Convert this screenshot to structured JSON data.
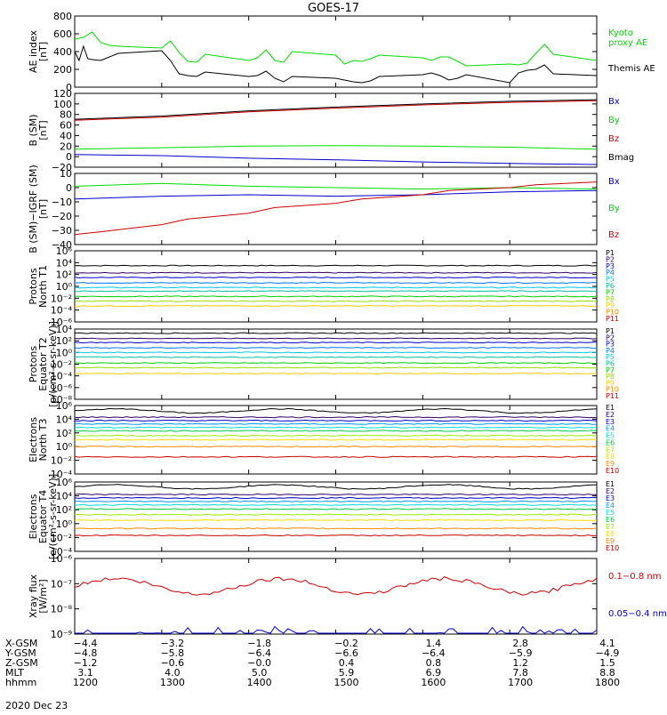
{
  "title": "GOES-17",
  "date_label": "2020 Dec 23",
  "colors": {
    "black": "#000000",
    "red": "#cc0000",
    "green": "#00dd00",
    "blue": "#0000cc",
    "P": [
      "#000000",
      "#330066",
      "#0000cc",
      "#0077ff",
      "#00c8e8",
      "#00c0a0",
      "#00d000",
      "#99dd00",
      "#ffcc00",
      "#ff8800",
      "#cc0000"
    ],
    "E": [
      "#000000",
      "#330066",
      "#0000cc",
      "#0099ff",
      "#00dddd",
      "#00cc44",
      "#99ee00",
      "#ffdd00",
      "#ff8800",
      "#cc0000"
    ]
  },
  "chart_data": [
    {
      "type": "line",
      "id": "ae",
      "ylabel": [
        "AE index",
        "[nT]"
      ],
      "ylim": [
        0,
        800
      ],
      "yticks": [
        "0",
        "200",
        "400",
        "600",
        "800"
      ],
      "legend": [
        {
          "text": "Kyoto",
          "color": "green"
        },
        {
          "text": "proxy AE",
          "color": "green"
        },
        {
          "text": "Themis AE",
          "color": "black"
        }
      ],
      "series": [
        {
          "name": "Kyoto proxy AE",
          "color": "green",
          "x": [
            1200,
            1210,
            1220,
            1230,
            1240,
            1250,
            1300,
            1310,
            1320,
            1330,
            1340,
            1350,
            1400,
            1410,
            1420,
            1430,
            1440,
            1450,
            1500,
            1510,
            1520,
            1530,
            1540,
            1550,
            1600,
            1610,
            1620,
            1630,
            1640,
            1650,
            1700,
            1710,
            1720,
            1730,
            1740,
            1750,
            1800
          ],
          "values": [
            540,
            560,
            620,
            500,
            470,
            460,
            440,
            520,
            390,
            290,
            280,
            370,
            300,
            330,
            420,
            300,
            280,
            400,
            360,
            260,
            300,
            290,
            320,
            360,
            330,
            300,
            340,
            340,
            290,
            240,
            260,
            250,
            270,
            380,
            480,
            370,
            300
          ]
        },
        {
          "name": "Themis AE",
          "color": "black",
          "x": [
            1200,
            1205,
            1210,
            1215,
            1220,
            1230,
            1240,
            1250,
            1300,
            1310,
            1320,
            1330,
            1340,
            1350,
            1400,
            1410,
            1420,
            1430,
            1440,
            1450,
            1500,
            1510,
            1520,
            1530,
            1540,
            1550,
            1600,
            1610,
            1620,
            1630,
            1640,
            1650,
            1700,
            1710,
            1720,
            1730,
            1740,
            1750,
            1800
          ],
          "values": [
            400,
            300,
            460,
            320,
            310,
            300,
            340,
            380,
            410,
            300,
            150,
            130,
            120,
            170,
            120,
            130,
            180,
            100,
            60,
            120,
            100,
            80,
            60,
            50,
            70,
            120,
            140,
            160,
            130,
            80,
            100,
            140,
            50,
            160,
            190,
            200,
            250,
            150,
            130
          ]
        }
      ]
    },
    {
      "type": "line",
      "id": "bsm",
      "ylabel": [
        "B (SM)",
        "[nT]"
      ],
      "ylim": [
        -20,
        120
      ],
      "yticks": [
        "−20",
        "0",
        "20",
        "40",
        "60",
        "80",
        "100",
        "120"
      ],
      "legend": [
        {
          "text": "Bx",
          "color": "blue"
        },
        {
          "text": "By",
          "color": "green"
        },
        {
          "text": "Bz",
          "color": "red"
        },
        {
          "text": "Bmag",
          "color": "black"
        }
      ],
      "series": [
        {
          "name": "Bx",
          "color": "blue",
          "x": [
            1200,
            1300,
            1400,
            1500,
            1600,
            1700,
            1800
          ],
          "values": [
            4,
            2,
            -3,
            -6,
            -10,
            -13,
            -15
          ]
        },
        {
          "name": "By",
          "color": "green",
          "x": [
            1200,
            1300,
            1400,
            1500,
            1600,
            1700,
            1800
          ],
          "values": [
            14,
            17,
            20,
            21,
            20,
            18,
            14
          ]
        },
        {
          "name": "Bz",
          "color": "red",
          "x": [
            1200,
            1300,
            1400,
            1500,
            1600,
            1700,
            1800
          ],
          "values": [
            69,
            75,
            85,
            92,
            98,
            103,
            106
          ]
        },
        {
          "name": "Bmag",
          "color": "black",
          "x": [
            1200,
            1300,
            1400,
            1500,
            1600,
            1700,
            1800
          ],
          "values": [
            71,
            77,
            87,
            94,
            100,
            105,
            108
          ]
        }
      ]
    },
    {
      "type": "line",
      "id": "bigrf",
      "ylabel": [
        "B (SM)−IGRF (SM)",
        "[nT]"
      ],
      "ylim": [
        -40,
        10
      ],
      "yticks": [
        "−40",
        "−30",
        "−20",
        "−10",
        "0",
        "10"
      ],
      "legend": [
        {
          "text": "Bx",
          "color": "blue"
        },
        {
          "text": "By",
          "color": "green"
        },
        {
          "text": "Bz",
          "color": "red"
        }
      ],
      "series": [
        {
          "name": "Bx",
          "color": "blue",
          "x": [
            1200,
            1300,
            1400,
            1500,
            1600,
            1700,
            1800
          ],
          "values": [
            -8,
            -6,
            -5,
            -6,
            -5,
            -3,
            -2
          ]
        },
        {
          "name": "By",
          "color": "green",
          "x": [
            1200,
            1300,
            1400,
            1500,
            1600,
            1700,
            1800
          ],
          "values": [
            1,
            3,
            1,
            0,
            -1,
            0,
            -1
          ]
        },
        {
          "name": "Bz",
          "color": "red",
          "x": [
            1200,
            1230,
            1300,
            1330,
            1400,
            1430,
            1500,
            1530,
            1600,
            1630,
            1700,
            1730,
            1800
          ],
          "values": [
            -33,
            -31,
            -26,
            -22,
            -18,
            -14,
            -11,
            -8,
            -5,
            -2,
            0,
            2,
            4
          ]
        }
      ]
    },
    {
      "type": "line",
      "id": "protons_t1",
      "log": true,
      "ylabel": [
        "Protons",
        "North T1"
      ],
      "yticks": [
        "10⁶",
        "10⁴",
        "10²",
        "10⁰",
        "10⁻²",
        "10⁻⁴",
        "10⁻⁶"
      ],
      "legend_prefix": "P",
      "legend": [
        "P1",
        "P2",
        "P3",
        "P4",
        "P5",
        "P6",
        "P7",
        "P8",
        "P9",
        "P10",
        "P11"
      ],
      "series_levels": [
        3.5,
        2.3,
        1.5,
        0.6,
        -0.2,
        -0.8,
        -1.7,
        -2.5,
        -3.3,
        null,
        null
      ]
    },
    {
      "type": "line",
      "id": "protons_t2",
      "log": true,
      "ylabel": [
        "Protons",
        "Equator T2",
        "[p/(cm²-s-sr-keV)]"
      ],
      "yticks": [
        "10⁴",
        "10²",
        "10⁰",
        "10⁻²",
        "10⁻⁴",
        "10⁻⁶",
        "10⁻⁸"
      ],
      "legend": [
        "P1",
        "P2",
        "P3",
        "P4",
        "P5",
        "P6",
        "P7",
        "P8",
        "P9",
        "P10",
        "P11"
      ],
      "series_levels": [
        3.3,
        2.4,
        1.7,
        0.8,
        0.0,
        -0.8,
        -1.8,
        -2.6,
        -3.6,
        null,
        null
      ]
    },
    {
      "type": "line",
      "id": "electrons_t3",
      "log": true,
      "ylabel": [
        "Electrons",
        "North T3"
      ],
      "yticks": [
        "10⁶",
        "10⁴",
        "10²",
        "10⁰",
        "10⁻²",
        "10⁻⁴"
      ],
      "legend": [
        "E1",
        "E2",
        "E3",
        "E4",
        "E5",
        "E6",
        "E7",
        "E8",
        "E9",
        "E10"
      ],
      "series_levels": [
        5.2,
        4.3,
        3.8,
        3.3,
        2.8,
        2.3,
        1.6,
        1.0,
        0.0,
        -1.5
      ]
    },
    {
      "type": "line",
      "id": "electrons_t4",
      "log": true,
      "ylabel": [
        "Electrons",
        "Equator T4",
        "[e/(cm²-s-sr-keV)]"
      ],
      "yticks": [
        "10⁶",
        "10⁴",
        "10²",
        "10⁰",
        "10⁻²",
        "10⁻⁴"
      ],
      "legend": [
        "E1",
        "E2",
        "E3",
        "E4",
        "E5",
        "E6",
        "E7",
        "E8",
        "E9",
        "E10"
      ],
      "series_levels": [
        5.3,
        4.2,
        3.7,
        3.2,
        2.7,
        2.1,
        1.3,
        0.5,
        -0.7,
        -1.7
      ]
    },
    {
      "type": "line",
      "id": "xray",
      "log": true,
      "ylabel": [
        "Xray flux",
        "[W/m²]"
      ],
      "yticks": [
        "10⁻⁶",
        "10⁻⁷",
        "10⁻⁸",
        "10⁻⁹"
      ],
      "legend": [
        {
          "text": "0.1−0.8 nm",
          "color": "red"
        },
        {
          "text": "0.05−0.4 nm",
          "color": "blue"
        }
      ],
      "series_levels": [
        -7.1,
        -9.3
      ]
    }
  ],
  "xaxis": {
    "range": [
      1200,
      1800
    ],
    "rows": [
      {
        "label": "X-GSM",
        "values": [
          "−4.4",
          "−3.2",
          "−1.8",
          "−0.2",
          "1.4",
          "2.8",
          "4.1"
        ]
      },
      {
        "label": "Y-GSM",
        "values": [
          "−4.8",
          "−5.8",
          "−6.4",
          "−6.6",
          "−6.4",
          "−5.9",
          "−4.9"
        ]
      },
      {
        "label": "Z-GSM",
        "values": [
          "−1.2",
          "−0.6",
          "−0.0",
          "0.4",
          "0.8",
          "1.2",
          "1.5"
        ]
      },
      {
        "label": "MLT",
        "values": [
          "3.1",
          "4.0",
          "5.0",
          "5.9",
          "6.9",
          "7.8",
          "8.8"
        ]
      },
      {
        "label": "hhmm",
        "values": [
          "1200",
          "1300",
          "1400",
          "1500",
          "1600",
          "1700",
          "1800"
        ]
      }
    ]
  }
}
